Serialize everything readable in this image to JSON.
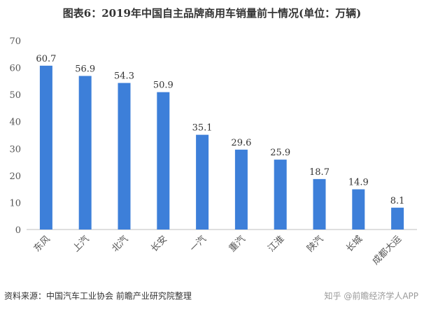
{
  "title": "图表6：2019年中国自主品牌商用车销量前十情况(单位：万辆)",
  "source": "资料来源：中国汽车工业协会 前瞻产业研究院整理",
  "watermark": "知乎 @前瞻经济学人APP",
  "colors": {
    "bar": "#3d7fd9",
    "axis": "#bfbfbf",
    "text": "#333333"
  },
  "chart_data": {
    "type": "bar",
    "title": "图表6：2019年中国自主品牌商用车销量前十情况(单位：万辆)",
    "categories": [
      "东风",
      "上汽",
      "北汽",
      "长安",
      "一汽",
      "重汽",
      "江淮",
      "陕汽",
      "长城",
      "成都大运"
    ],
    "values": [
      60.7,
      56.9,
      54.3,
      50.9,
      35.1,
      29.6,
      25.9,
      18.7,
      14.9,
      8.1
    ],
    "value_labels": [
      "60.7",
      "56.9",
      "54.3",
      "50.9",
      "35.1",
      "29.6",
      "25.9",
      "18.7",
      "14.9",
      "8.1"
    ],
    "yticks": [
      "0",
      "10",
      "20",
      "30",
      "40",
      "50",
      "60",
      "70"
    ],
    "ylim": [
      0,
      70
    ],
    "grid": false,
    "legend": "none"
  }
}
